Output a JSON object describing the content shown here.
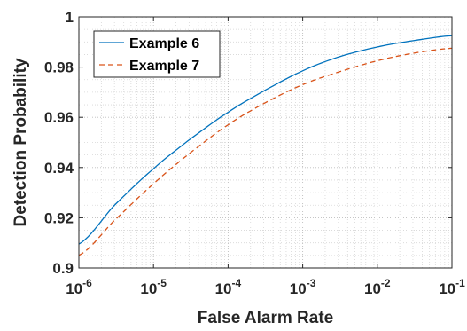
{
  "chart_data": {
    "type": "line",
    "xlabel": "False Alarm Rate",
    "ylabel": "Detection Probability",
    "x_scale": "log",
    "xlim": [
      1e-06,
      0.1
    ],
    "ylim": [
      0.9,
      1.0
    ],
    "x_ticks": [
      {
        "value": 1e-06,
        "base": "10",
        "exp": "-6"
      },
      {
        "value": 1e-05,
        "base": "10",
        "exp": "-5"
      },
      {
        "value": 0.0001,
        "base": "10",
        "exp": "-4"
      },
      {
        "value": 0.001,
        "base": "10",
        "exp": "-3"
      },
      {
        "value": 0.01,
        "base": "10",
        "exp": "-2"
      },
      {
        "value": 0.1,
        "base": "10",
        "exp": "-1"
      }
    ],
    "y_ticks": [
      {
        "value": 0.9,
        "label": "0.9"
      },
      {
        "value": 0.92,
        "label": "0.92"
      },
      {
        "value": 0.94,
        "label": "0.94"
      },
      {
        "value": 0.96,
        "label": "0.96"
      },
      {
        "value": 0.98,
        "label": "0.98"
      },
      {
        "value": 1.0,
        "label": "1"
      }
    ],
    "grid": true,
    "minor_grid": true,
    "legend_position": "top-left",
    "x": [
      1e-06,
      3e-06,
      1e-05,
      3e-05,
      0.0001,
      0.0003,
      0.001,
      0.003,
      0.01,
      0.03,
      0.1
    ],
    "series": [
      {
        "name": "Example 6",
        "style": "solid",
        "color": "#0072BD",
        "values": [
          0.9095,
          0.925,
          0.9395,
          0.951,
          0.962,
          0.9705,
          0.9785,
          0.984,
          0.988,
          0.9905,
          0.9925
        ]
      },
      {
        "name": "Example 7",
        "style": "dashed",
        "color": "#D95319",
        "values": [
          0.905,
          0.919,
          0.9335,
          0.9455,
          0.957,
          0.9655,
          0.973,
          0.978,
          0.9825,
          0.9855,
          0.9875
        ]
      }
    ]
  }
}
